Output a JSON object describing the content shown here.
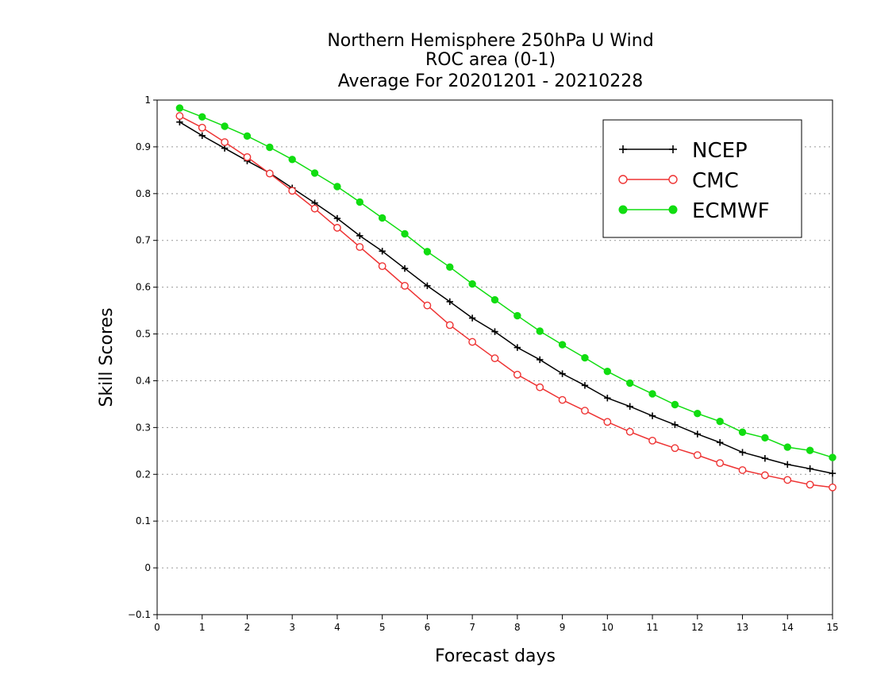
{
  "chart_data": {
    "type": "line",
    "title_lines": [
      "Northern Hemisphere 250hPa U Wind",
      "ROC area (0-1)",
      "Average For 20201201 - 20210228"
    ],
    "xlabel": "Forecast days",
    "ylabel": "Skill Scores",
    "xlim": [
      0,
      15
    ],
    "ylim": [
      -0.1,
      1
    ],
    "x_ticks": [
      0,
      1,
      2,
      3,
      4,
      5,
      6,
      7,
      8,
      9,
      10,
      11,
      12,
      13,
      14,
      15
    ],
    "y_ticks": [
      -0.1,
      0,
      0.1,
      0.2,
      0.3,
      0.4,
      0.5,
      0.6,
      0.7,
      0.8,
      0.9,
      1
    ],
    "grid": "horizontal dotted",
    "legend_position": "top-right",
    "x": [
      0.5,
      1,
      1.5,
      2,
      2.5,
      3,
      3.5,
      4,
      4.5,
      5,
      5.5,
      6,
      6.5,
      7,
      7.5,
      8,
      8.5,
      9,
      9.5,
      10,
      10.5,
      11,
      11.5,
      12,
      12.5,
      13,
      13.5,
      14,
      14.5,
      15
    ],
    "series": [
      {
        "name": "NCEP",
        "color": "#000000",
        "marker": "plus",
        "values": [
          0.953,
          0.924,
          0.897,
          0.87,
          0.844,
          0.812,
          0.78,
          0.747,
          0.71,
          0.677,
          0.64,
          0.603,
          0.569,
          0.534,
          0.505,
          0.471,
          0.445,
          0.415,
          0.39,
          0.363,
          0.345,
          0.325,
          0.306,
          0.286,
          0.268,
          0.247,
          0.234,
          0.221,
          0.212,
          0.202
        ]
      },
      {
        "name": "CMC",
        "color": "#ee3333",
        "marker": "open-circle",
        "values": [
          0.966,
          0.941,
          0.91,
          0.878,
          0.843,
          0.806,
          0.768,
          0.727,
          0.686,
          0.645,
          0.603,
          0.561,
          0.519,
          0.483,
          0.448,
          0.413,
          0.386,
          0.359,
          0.336,
          0.312,
          0.291,
          0.272,
          0.256,
          0.241,
          0.224,
          0.209,
          0.198,
          0.188,
          0.178,
          0.172
        ]
      },
      {
        "name": "ECMWF",
        "color": "#11dd11",
        "marker": "filled-circle",
        "values": [
          0.983,
          0.964,
          0.944,
          0.923,
          0.899,
          0.873,
          0.844,
          0.815,
          0.782,
          0.748,
          0.714,
          0.676,
          0.643,
          0.607,
          0.573,
          0.539,
          0.506,
          0.477,
          0.449,
          0.42,
          0.395,
          0.372,
          0.349,
          0.33,
          0.313,
          0.29,
          0.278,
          0.258,
          0.251,
          0.236
        ]
      }
    ]
  }
}
